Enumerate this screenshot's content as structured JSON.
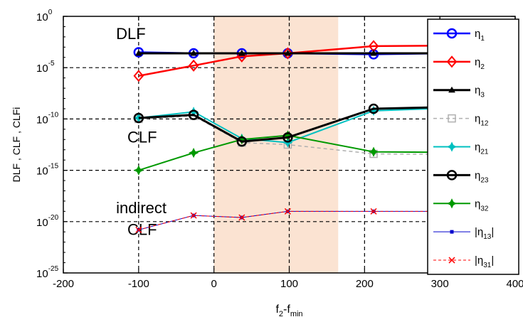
{
  "chart_data": {
    "type": "line",
    "xlabel_main": "f",
    "xlabel_sub1": "2",
    "xlabel_mid": "-f",
    "xlabel_sub2": "min",
    "ylabel": "DLF , CLF , CLFi",
    "xlim": [
      -200,
      400
    ],
    "ylim_exp": [
      -25,
      0
    ],
    "y_scale": "log",
    "x_ticks": [
      "-200",
      "-100",
      "0",
      "100",
      "200",
      "300",
      "400"
    ],
    "x_tick_values": [
      -200,
      -100,
      0,
      100,
      200,
      300,
      400
    ],
    "y_tick_base": "10",
    "y_tick_exps": [
      "0",
      "-5",
      "-10",
      "-15",
      "-20",
      "-25"
    ],
    "y_tick_values": [
      0,
      -5,
      -10,
      -15,
      -20,
      -25
    ],
    "grid": true,
    "grid_x": [
      -100,
      0,
      100,
      200,
      300
    ],
    "grid_y": [
      -5,
      -10,
      -15,
      -20
    ],
    "shaded_region": {
      "x_from": 0,
      "x_to": 165,
      "color": "#fbe3d2"
    },
    "annotations": [
      {
        "text": "DLF",
        "x": -130,
        "y_exp": -2.2
      },
      {
        "text": "CLF",
        "x": -115,
        "y_exp": -12.3
      },
      {
        "text": "indirect",
        "x": -130,
        "y_exp": -19.2
      },
      {
        "text": "CLF",
        "x": -115,
        "y_exp": -21.3
      }
    ],
    "legend_position": "right",
    "series": [
      {
        "name": "η",
        "sub": "1",
        "color": "#0000ff",
        "dash": "",
        "marker": "circle",
        "x": [
          -100,
          -27,
          37,
          98,
          212,
          400
        ],
        "y_exp": [
          -3.5,
          -3.6,
          -3.6,
          -3.6,
          -3.7,
          -3.5
        ]
      },
      {
        "name": "η",
        "sub": "2",
        "color": "#ff0000",
        "dash": "",
        "marker": "diamond",
        "x": [
          -100,
          -27,
          37,
          98,
          212,
          400
        ],
        "y_exp": [
          -5.8,
          -4.8,
          -3.9,
          -3.6,
          -2.9,
          -2.8
        ]
      },
      {
        "name": "η",
        "sub": "3",
        "color": "#000000",
        "dash": "",
        "marker": "triangle",
        "x": [
          -100,
          -27,
          37,
          98,
          212,
          400
        ],
        "y_exp": [
          -3.6,
          -3.6,
          -3.6,
          -3.6,
          -3.6,
          -3.6
        ]
      },
      {
        "name": "η",
        "sub": "12",
        "color": "#b0b0b0",
        "dash": "5,4",
        "marker": "square",
        "x": [
          -100,
          -27,
          37,
          98,
          212,
          400
        ],
        "y_exp": [
          -10.0,
          -9.7,
          -12.3,
          -12.5,
          -13.4,
          -13.5
        ]
      },
      {
        "name": "η",
        "sub": "21",
        "color": "#00c0c0",
        "dash": "",
        "marker": "star",
        "x": [
          -100,
          -27,
          37,
          98,
          212,
          400
        ],
        "y_exp": [
          -9.9,
          -9.3,
          -11.9,
          -12.3,
          -9.2,
          -8.7
        ]
      },
      {
        "name": "η",
        "sub": "23",
        "color": "#000000",
        "dash": "",
        "marker": "circle",
        "x": [
          -100,
          -27,
          37,
          98,
          212,
          400
        ],
        "y_exp": [
          -9.9,
          -9.6,
          -12.2,
          -11.8,
          -9.0,
          -8.7
        ]
      },
      {
        "name": "η",
        "sub": "32",
        "color": "#009900",
        "dash": "",
        "marker": "star",
        "x": [
          -100,
          -27,
          37,
          98,
          212,
          400
        ],
        "y_exp": [
          -15.0,
          -13.3,
          -12.0,
          -11.6,
          -13.2,
          -13.3
        ]
      },
      {
        "name": "|η",
        "sub": "13",
        "tail": "|",
        "color": "#0000cc",
        "dash": "",
        "marker": "dot",
        "x": [
          -100,
          -27,
          37,
          98,
          212,
          400
        ],
        "y_exp": [
          -20.8,
          -19.4,
          -19.6,
          -19.0,
          -19.0,
          -19.0
        ]
      },
      {
        "name": "|η",
        "sub": "31",
        "tail": "|",
        "color": "#ff0000",
        "dash": "4,3",
        "marker": "x",
        "x": [
          -100,
          -27,
          37,
          98,
          212,
          400
        ],
        "y_exp": [
          -20.8,
          -19.4,
          -19.6,
          -19.0,
          -19.0,
          -19.0
        ]
      }
    ]
  }
}
